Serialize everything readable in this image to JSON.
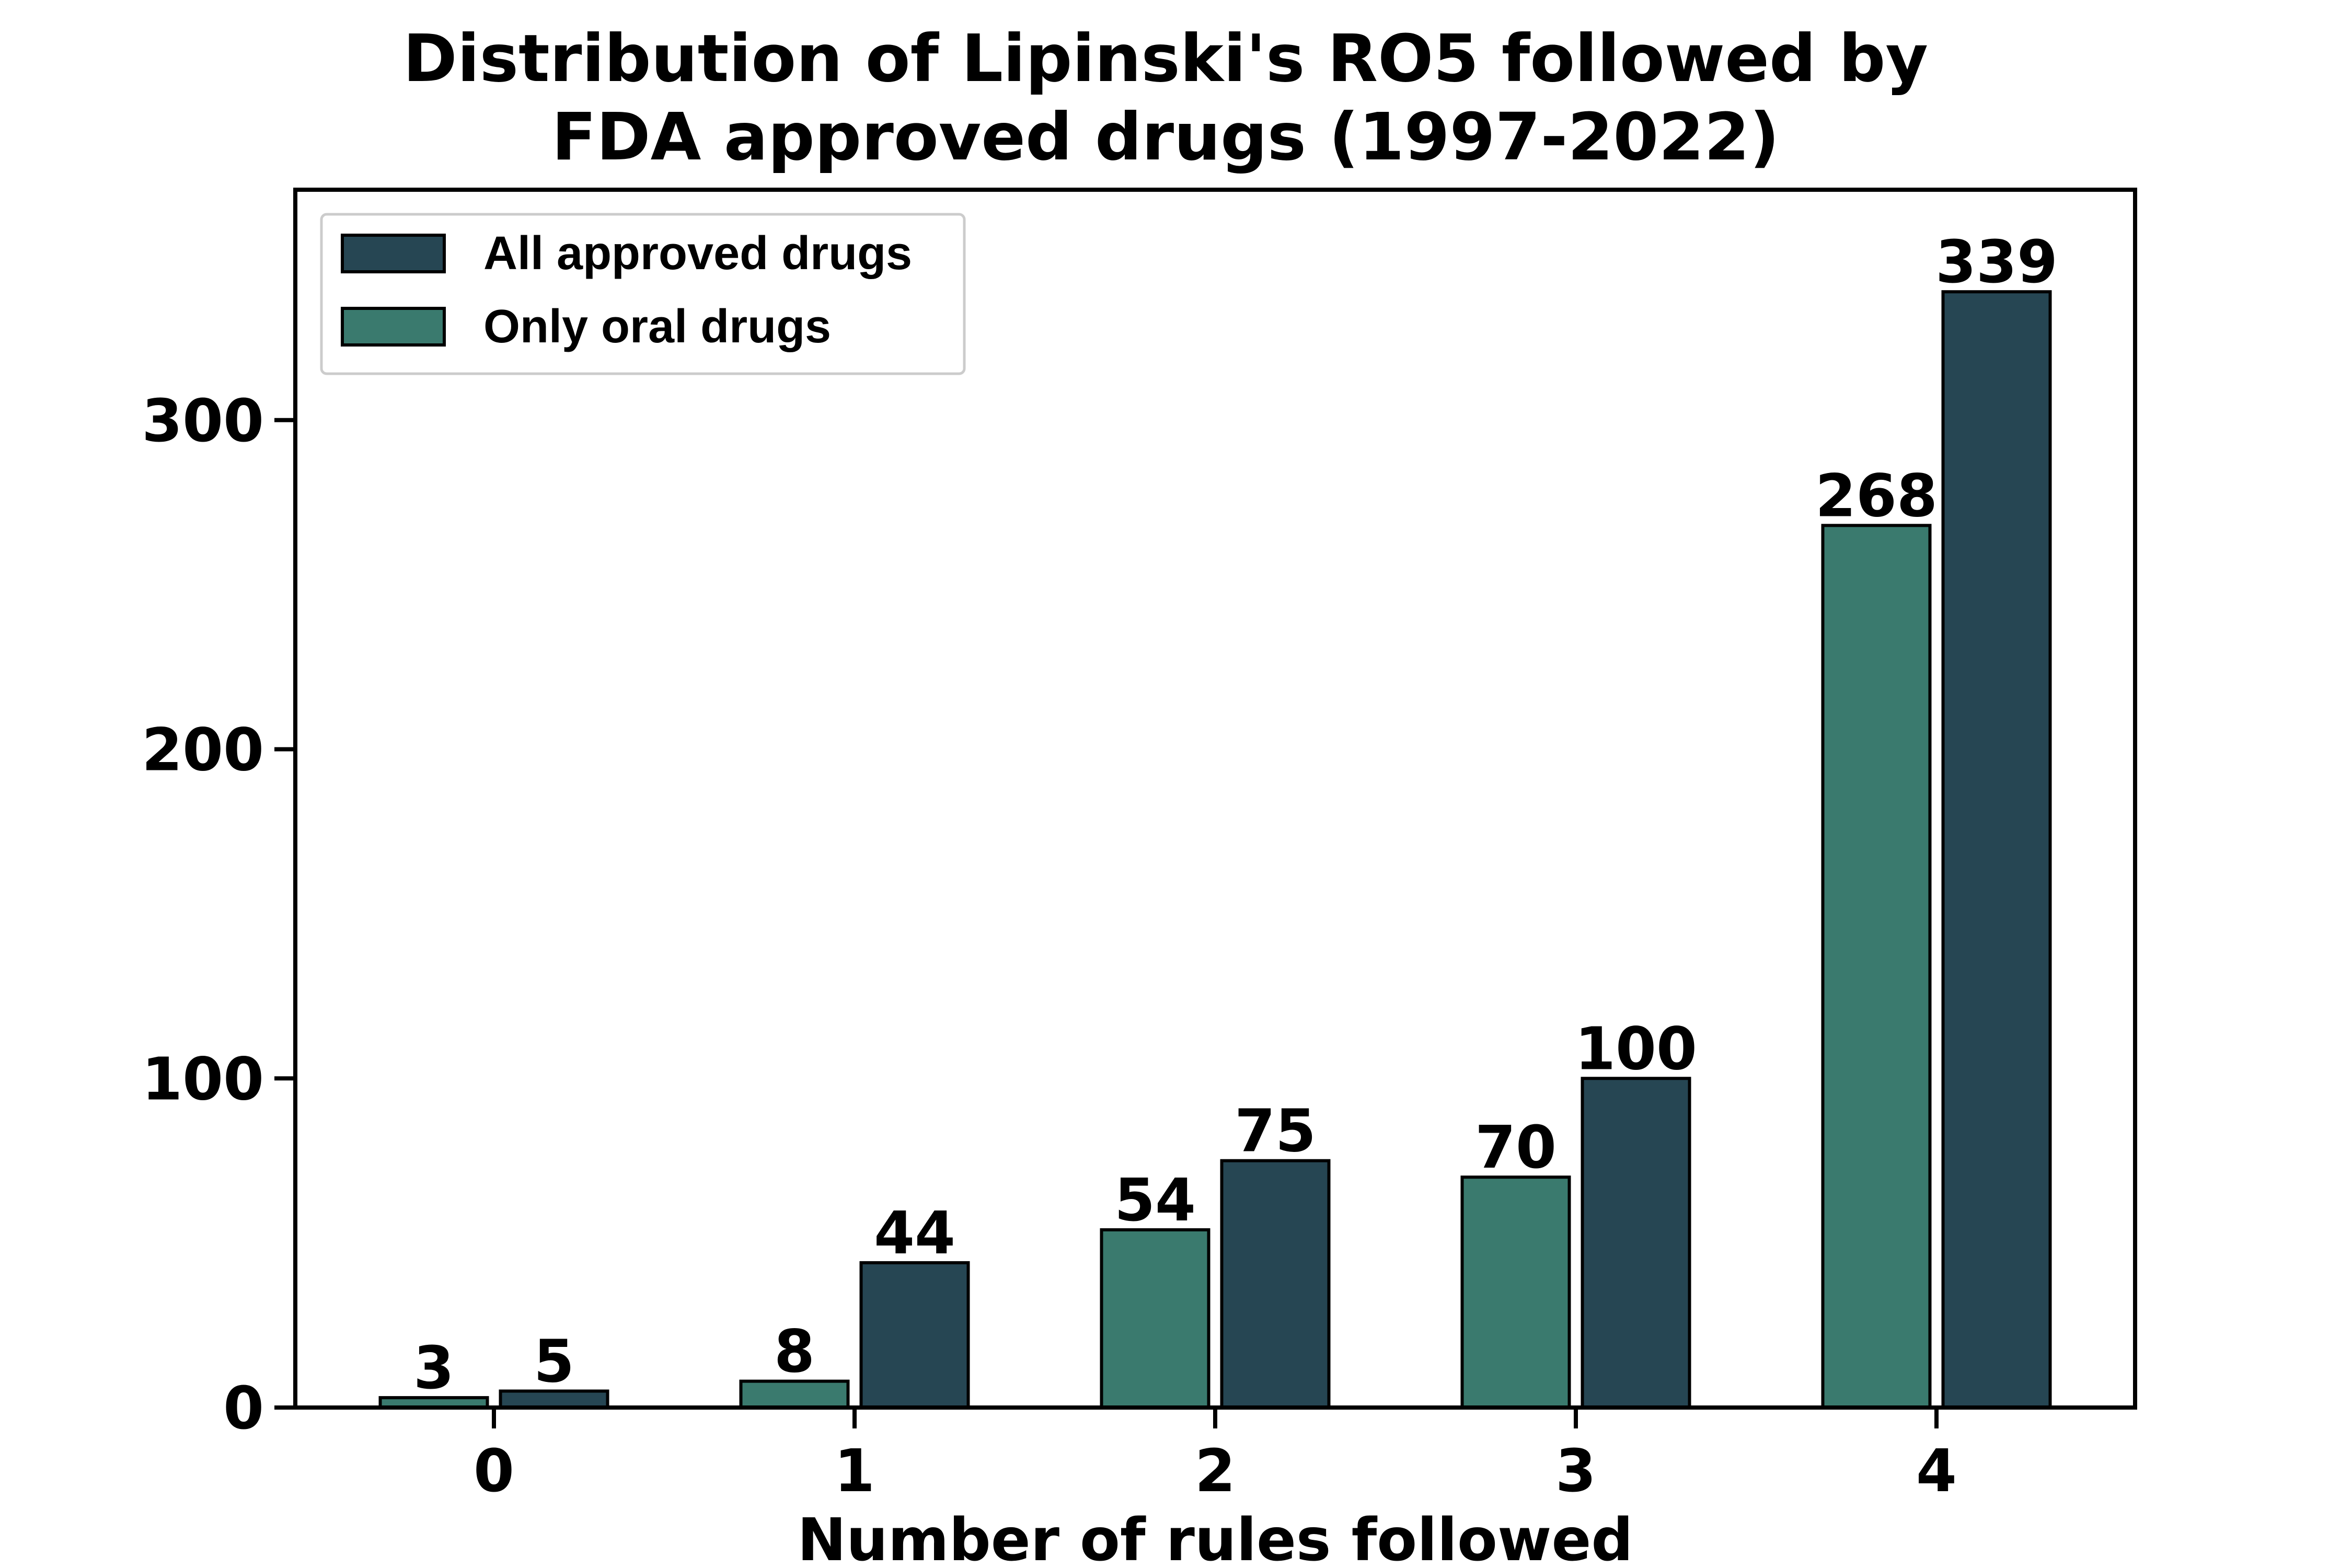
{
  "chart_data": {
    "type": "bar",
    "title_lines": [
      "Distribution of Lipinski's RO5 followed by",
      "FDA approved drugs (1997-2022)"
    ],
    "xlabel": "Number of rules followed",
    "ylabel": "",
    "categories": [
      "0",
      "1",
      "2",
      "3",
      "4"
    ],
    "series": [
      {
        "name": "Only oral drugs",
        "values": [
          3,
          8,
          54,
          70,
          268
        ],
        "color": "#3a7a6e"
      },
      {
        "name": "All approved drugs",
        "values": [
          5,
          44,
          75,
          100,
          339
        ],
        "color": "#264653"
      }
    ],
    "legend_order": [
      "All approved drugs",
      "Only oral drugs"
    ],
    "legend_position": "top-left",
    "ylim": [
      0,
      370
    ],
    "yticks": [
      0,
      100,
      200,
      300
    ],
    "grid": false
  }
}
